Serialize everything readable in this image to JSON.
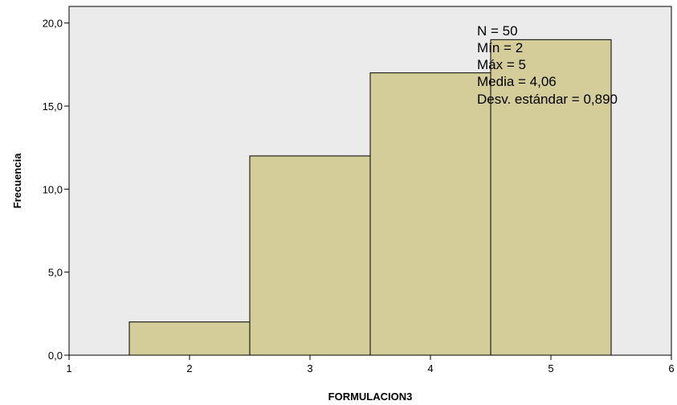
{
  "chart_data": {
    "type": "bar",
    "subtype": "histogram",
    "xlabel": "FORMULACION3",
    "ylabel": "Frecuencia",
    "xlim": [
      1,
      6
    ],
    "ylim": [
      0,
      21
    ],
    "bins": [
      {
        "x0": 1.5,
        "x1": 2.5,
        "value": 2
      },
      {
        "x0": 2.5,
        "x1": 3.5,
        "value": 12
      },
      {
        "x0": 3.5,
        "x1": 4.5,
        "value": 17
      },
      {
        "x0": 4.5,
        "x1": 5.5,
        "value": 19
      }
    ],
    "x_ticks": [
      {
        "value": 1,
        "label": "1"
      },
      {
        "value": 2,
        "label": "2"
      },
      {
        "value": 3,
        "label": "3"
      },
      {
        "value": 4,
        "label": "4"
      },
      {
        "value": 5,
        "label": "5"
      },
      {
        "value": 6,
        "label": "6"
      }
    ],
    "y_ticks": [
      {
        "value": 0,
        "label": "0,0"
      },
      {
        "value": 5,
        "label": "5,0"
      },
      {
        "value": 10,
        "label": "10,0"
      },
      {
        "value": 15,
        "label": "15,0"
      },
      {
        "value": 20,
        "label": "20,0"
      }
    ],
    "stats": [
      "N = 50",
      "Mín = 2",
      "Máx = 5",
      "Media = 4,06",
      "Desv. estándar = 0,890"
    ],
    "grid": false,
    "colors": {
      "plot_background": "#ebebeb",
      "bar_fill": "#d4cd9a",
      "bar_stroke": "#000000"
    }
  }
}
